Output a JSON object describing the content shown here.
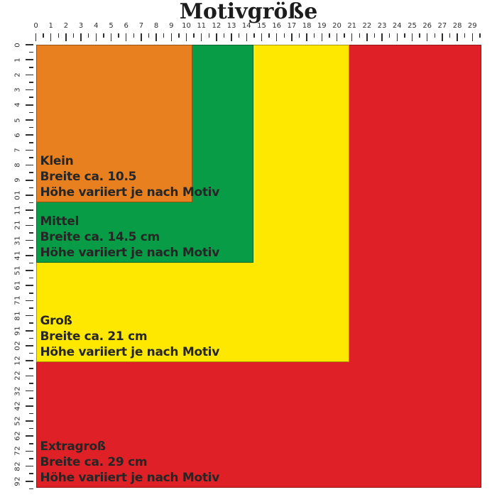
{
  "title": "Motivgröße",
  "ruler": {
    "numbers": [
      "0",
      "1",
      "2",
      "3",
      "4",
      "5",
      "6",
      "7",
      "8",
      "9",
      "10",
      "11",
      "12",
      "13",
      "14",
      "15",
      "16",
      "17",
      "18",
      "19",
      "20",
      "21",
      "22",
      "23",
      "24",
      "25",
      "26",
      "27",
      "28",
      "29"
    ]
  },
  "sizes": [
    {
      "id": "extragross",
      "name": "Extragroß",
      "color": "#DF2127",
      "width_cm": 29,
      "label_lines": [
        "Extragroß",
        "Breite ca. 29 cm",
        "Höhe variiert je nach Motiv"
      ]
    },
    {
      "id": "gross",
      "name": "Groß",
      "color": "#FFE800",
      "width_cm": 21,
      "label_lines": [
        "Groß",
        "Breite ca. 21 cm",
        "Höhe variiert je nach Motiv"
      ]
    },
    {
      "id": "mittel",
      "name": "Mittel",
      "color": "#089C47",
      "width_cm": 14.5,
      "label_lines": [
        "Mittel",
        "Breite ca. 14.5 cm",
        "Höhe variiert je nach Motiv"
      ]
    },
    {
      "id": "klein",
      "name": "Klein",
      "color": "#E8801F",
      "width_cm": 10.5,
      "label_lines": [
        "Klein",
        "Breite ca. 10.5",
        "Höhe variiert je nach Motiv"
      ]
    }
  ]
}
